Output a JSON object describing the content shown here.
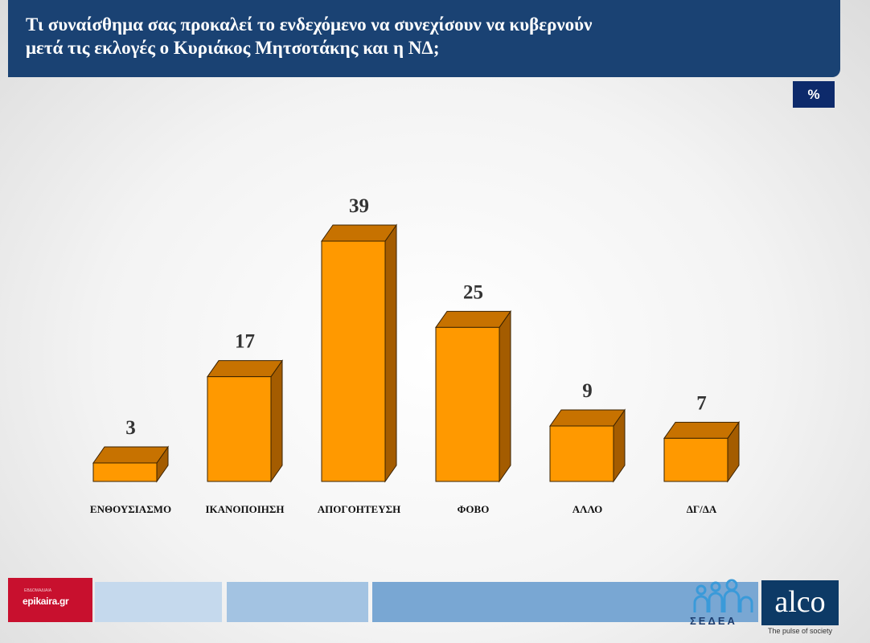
{
  "header": {
    "title_line1": "Τι συναίσθημα σας προκαλεί το ενδεχόμενο να συνεχίσουν να κυβερνούν",
    "title_line2": "μετά τις εκλογές ο Κυριάκος Μητσοτάκης και η ΝΔ;"
  },
  "unit_badge": "%",
  "chart_data": {
    "type": "bar",
    "title": "Τι συναίσθημα σας προκαλεί το ενδεχόμενο να συνεχίσουν να κυβερνούν μετά τις εκλογές ο Κυριάκος Μητσοτάκης και η ΝΔ;",
    "categories": [
      "ΕΝΘΟΥΣΙΑΣΜΟ",
      "ΙΚΑΝΟΠΟΙΗΣΗ",
      "ΑΠΟΓΟΗΤΕΥΣΗ",
      "ΦΟΒΟ",
      "ΑΛΛΟ",
      "ΔΓ/ΔΑ"
    ],
    "values": [
      3,
      17,
      39,
      25,
      9,
      7
    ],
    "unit": "%",
    "xlabel": "",
    "ylabel": "",
    "ylim": [
      0,
      39
    ],
    "grid": false,
    "legend": "none"
  },
  "colors": {
    "bar_front": "#ff9900",
    "bar_top": "#c77200",
    "bar_side": "#a45c00",
    "header_bg": "#1a4273"
  },
  "footer": {
    "brand_red": "epikaira.gr",
    "brand_red_sub": "ΕΒΔΟΜΑΔΙΑΙΑ",
    "sedea": "ΣΕΔΕΑ",
    "alco": "alco",
    "alco_tagline": "The pulse of society"
  }
}
